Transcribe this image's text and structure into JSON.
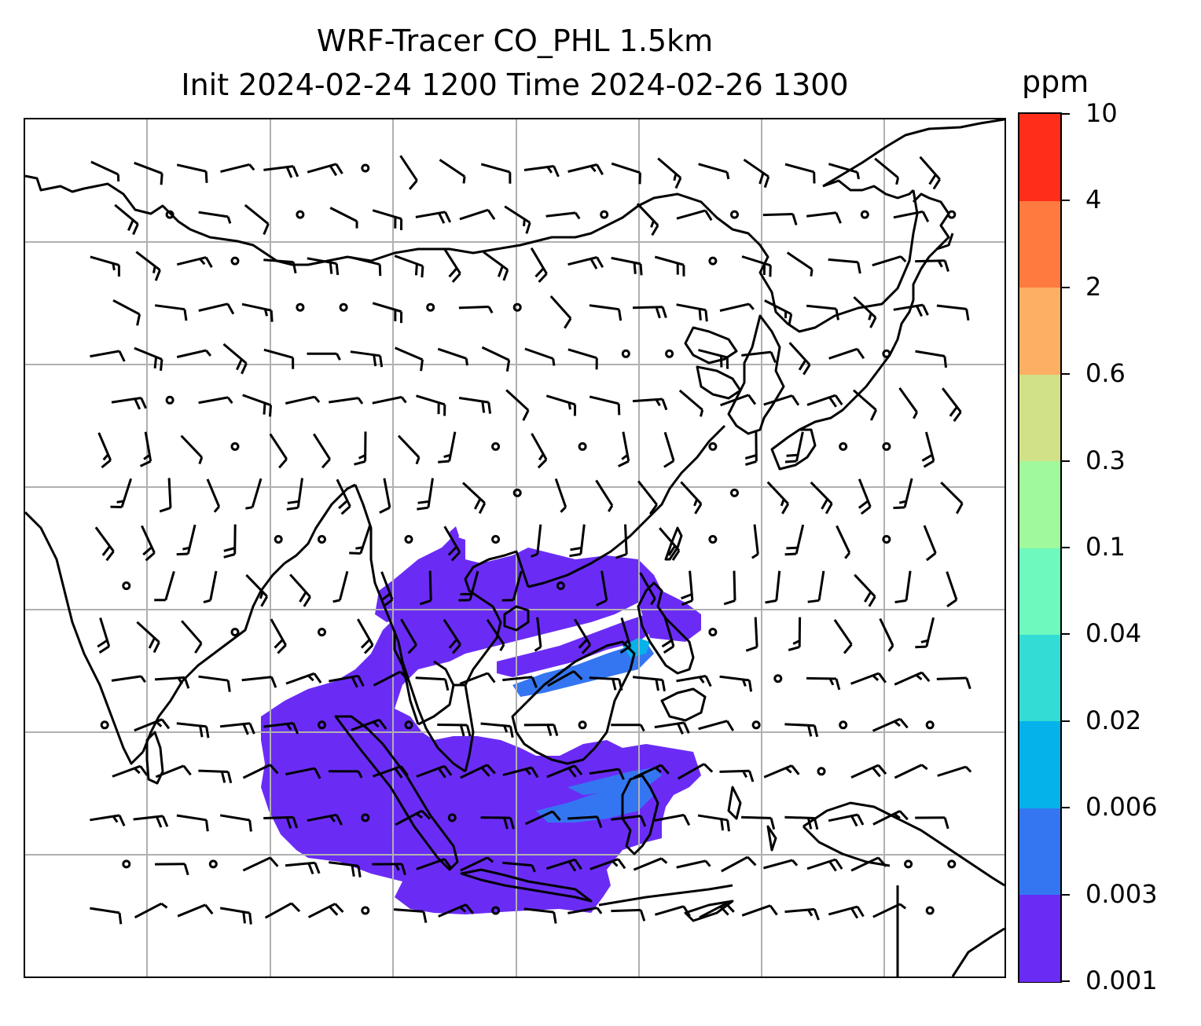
{
  "title_line1": "WRF-Tracer CO_PHL 1.5km",
  "title_line2": "Init 2024-02-24 1200 Time 2024-02-26 1300",
  "colorbar": {
    "unit": "ppm",
    "levels": [
      "0.001",
      "0.003",
      "0.006",
      "0.02",
      "0.04",
      "0.1",
      "0.3",
      "0.6",
      "2",
      "4",
      "10"
    ],
    "colors": [
      "#6a2cf5",
      "#3476f1",
      "#05b2ea",
      "#33dcd4",
      "#6ef9bf",
      "#a0f99a",
      "#d0e187",
      "#fdb063",
      "#fe7a3e",
      "#ff2d1a"
    ]
  },
  "map": {
    "gridlines": "on",
    "tracer_fill_colors": [
      "#6a2cf5",
      "#3476f1",
      "#05b2ea"
    ],
    "overlay": "wind-barbs",
    "coastline_color": "#000000"
  }
}
